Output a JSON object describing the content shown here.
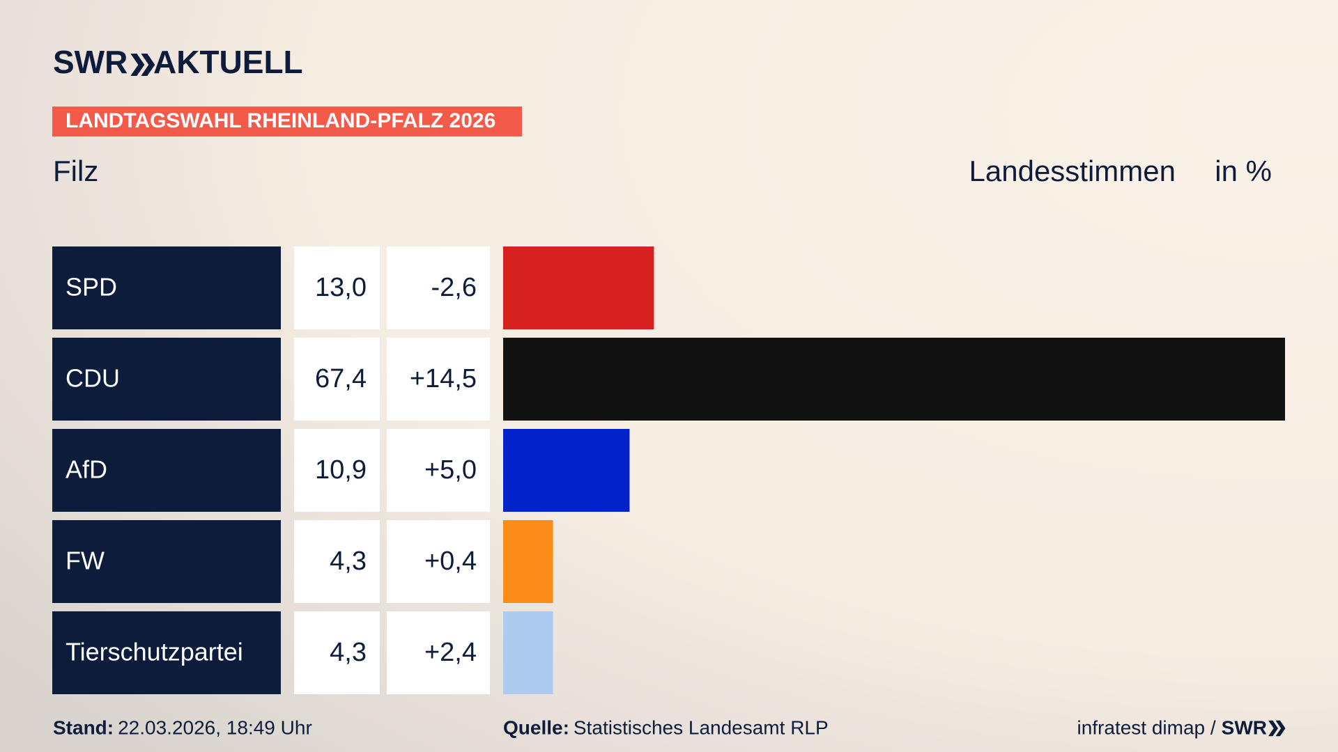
{
  "brand": {
    "name": "SWR",
    "product": "AKTUELL"
  },
  "tag": "LANDTAGSWAHL RHEINLAND-PFALZ 2026",
  "chart_data": {
    "type": "bar",
    "title": "Filz",
    "subtitle": "Landesstimmen",
    "unit": "in %",
    "categories": [
      "SPD",
      "CDU",
      "AfD",
      "FW",
      "Tierschutzpartei"
    ],
    "values": [
      13.0,
      67.4,
      10.9,
      4.3,
      4.3
    ],
    "value_labels": [
      "13,0",
      "67,4",
      "10,9",
      "4,3",
      "4,3"
    ],
    "changes": [
      "-2,6",
      "+14,5",
      "+5,0",
      "+0,4",
      "+2,4"
    ],
    "colors": [
      "#d72020",
      "#121212",
      "#0022c8",
      "#fb8c17",
      "#aecbef"
    ]
  },
  "footer": {
    "stand_label": "Stand:",
    "stand": "22.03.2026, 18:49 Uhr",
    "source_label": "Quelle:",
    "source": "Statistisches Landesamt RLP",
    "credit": "infratest dimap /",
    "credit_brand": "SWR"
  }
}
